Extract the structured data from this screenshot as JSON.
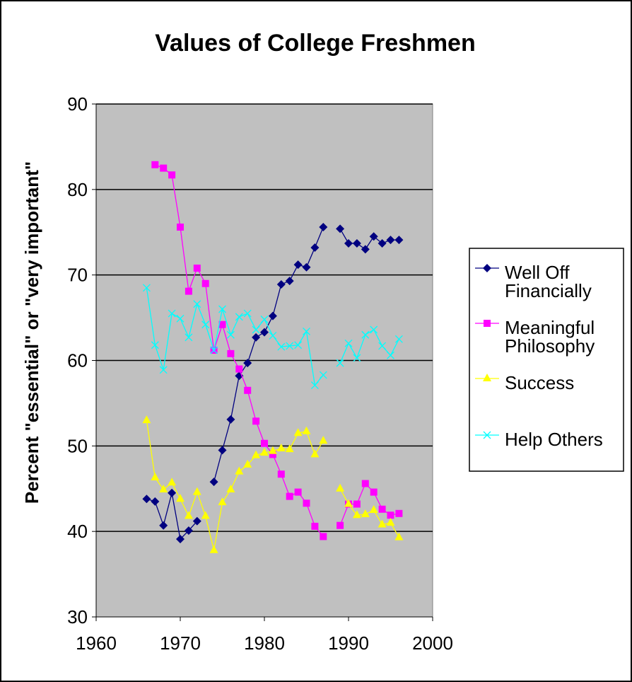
{
  "chart_data": {
    "type": "line",
    "title": "Values of College Freshmen",
    "xlabel": "",
    "ylabel": "Percent \"essential\" or \"very important\"",
    "xlim": [
      1960,
      2000
    ],
    "ylim": [
      30,
      90
    ],
    "xticks": [
      1960,
      1970,
      1980,
      1990,
      2000
    ],
    "yticks": [
      30,
      40,
      50,
      60,
      70,
      80,
      90
    ],
    "grid": "horizontal major gridlines",
    "plot_background": "#c0c0c0",
    "legend_position": "right",
    "x": [
      1966,
      1967,
      1968,
      1969,
      1970,
      1971,
      1972,
      1973,
      1974,
      1975,
      1976,
      1977,
      1978,
      1979,
      1980,
      1981,
      1982,
      1983,
      1984,
      1985,
      1986,
      1987,
      1988,
      1989,
      1990,
      1991,
      1992,
      1993,
      1994,
      1995,
      1996
    ],
    "series": [
      {
        "name": "Well Off Financially",
        "legend_lines": [
          "Well Off",
          "Financially"
        ],
        "color": "#000080",
        "marker": "diamond",
        "values": [
          43.8,
          43.5,
          40.7,
          44.5,
          39.1,
          40.1,
          41.2,
          null,
          45.8,
          49.5,
          53.1,
          58.2,
          59.7,
          62.7,
          63.3,
          65.2,
          68.9,
          69.3,
          71.2,
          70.9,
          73.2,
          75.6,
          null,
          75.4,
          73.7,
          73.7,
          73.0,
          74.5,
          73.7,
          74.1,
          74.1
        ]
      },
      {
        "name": "Meaningful Philosophy",
        "legend_lines": [
          "Meaningful",
          "Philosophy"
        ],
        "color": "#ff00ff",
        "marker": "square",
        "values": [
          null,
          82.9,
          82.5,
          81.7,
          75.6,
          68.1,
          70.8,
          69.0,
          61.2,
          64.2,
          60.8,
          59.0,
          56.5,
          52.9,
          50.3,
          49.0,
          46.7,
          44.1,
          44.6,
          43.3,
          40.6,
          39.4,
          null,
          40.7,
          43.2,
          43.2,
          45.6,
          44.6,
          42.6,
          41.9,
          42.1
        ]
      },
      {
        "name": "Success",
        "legend_lines": [
          "Success"
        ],
        "color": "#ffff00",
        "marker": "triangle",
        "values": [
          53.0,
          46.3,
          44.9,
          45.7,
          43.8,
          41.8,
          44.6,
          41.8,
          37.8,
          43.4,
          44.9,
          47.0,
          47.8,
          48.9,
          49.2,
          49.4,
          49.7,
          49.6,
          51.5,
          51.7,
          49.0,
          50.6,
          null,
          45.0,
          43.2,
          41.9,
          42.0,
          42.5,
          40.8,
          41.0,
          39.3
        ]
      },
      {
        "name": "Help Others",
        "legend_lines": [
          "Help Others"
        ],
        "color": "#00ffff",
        "marker": "x",
        "values": [
          68.5,
          61.8,
          58.9,
          65.5,
          64.9,
          62.7,
          66.6,
          64.2,
          61.2,
          66.0,
          63.0,
          65.1,
          65.5,
          63.6,
          64.8,
          62.9,
          61.6,
          61.7,
          61.8,
          63.4,
          57.1,
          58.3,
          null,
          59.7,
          62.0,
          60.3,
          63.0,
          63.6,
          61.7,
          60.6,
          62.5
        ]
      }
    ]
  }
}
